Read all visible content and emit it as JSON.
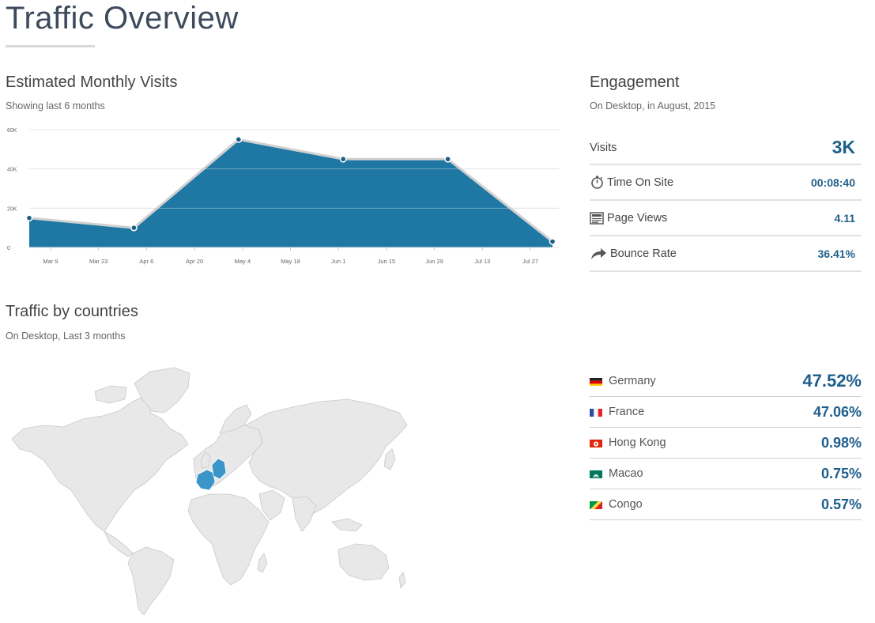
{
  "page": {
    "title": "Traffic Overview"
  },
  "visits": {
    "title": "Estimated Monthly Visits",
    "subtitle": "Showing last 6 months"
  },
  "chart_data": {
    "type": "area",
    "x": [
      "Mar 1",
      "Apr 1",
      "May 1",
      "Jun 1",
      "Jul 1",
      "Aug 1"
    ],
    "values": [
      15000,
      10000,
      55000,
      45000,
      45000,
      3000
    ],
    "x_ticks": [
      "Mar 9",
      "Mar 23",
      "Apr 6",
      "Apr 20",
      "May 4",
      "May 18",
      "Jun 1",
      "Jun 15",
      "Jun 29",
      "Jul 13",
      "Jul 27"
    ],
    "y_ticks": [
      "0",
      "20K",
      "40K",
      "60K"
    ],
    "ylim": [
      0,
      60000
    ],
    "grid": true,
    "colors": {
      "fill": "#1f77a4",
      "line": "#d0d0d0",
      "point": "#1b5f87"
    }
  },
  "engagement": {
    "title": "Engagement",
    "subtitle": "On Desktop, in August, 2015",
    "rows": [
      {
        "label": "Visits",
        "value": "3K",
        "icon": ""
      },
      {
        "label": "Time On Site",
        "value": "00:08:40",
        "icon": "stopwatch-icon"
      },
      {
        "label": "Page Views",
        "value": "4.11",
        "icon": "page-icon"
      },
      {
        "label": "Bounce Rate",
        "value": "36.41%",
        "icon": "bounce-arrow-icon"
      }
    ]
  },
  "countries": {
    "title": "Traffic by countries",
    "subtitle": "On Desktop, Last 3 months",
    "highlight_color": "#3a95c9",
    "land_color": "#e6e6e6",
    "list": [
      {
        "name": "Germany",
        "value": "47.52%",
        "flag": "germany-flag"
      },
      {
        "name": "France",
        "value": "47.06%",
        "flag": "france-flag"
      },
      {
        "name": "Hong Kong",
        "value": "0.98%",
        "flag": "hong-kong-flag"
      },
      {
        "name": "Macao",
        "value": "0.75%",
        "flag": "macao-flag"
      },
      {
        "name": "Congo",
        "value": "0.57%",
        "flag": "congo-flag"
      }
    ]
  }
}
